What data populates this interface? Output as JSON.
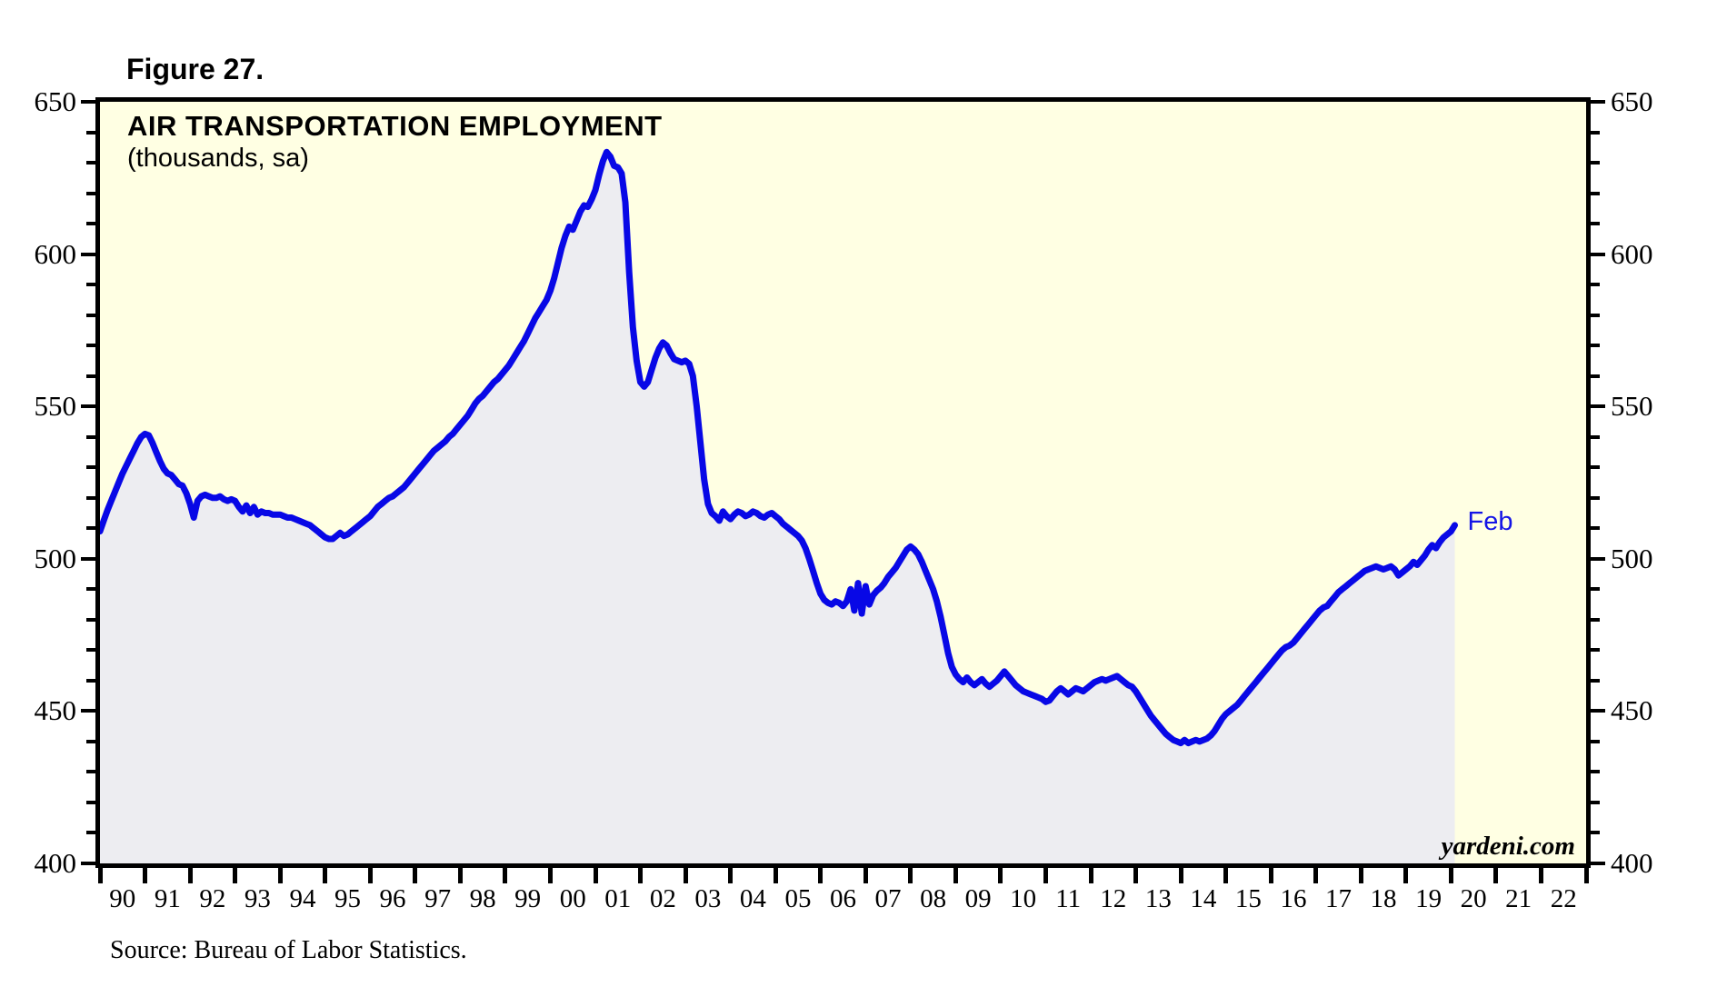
{
  "figure": {
    "label": "Figure 27."
  },
  "chart": {
    "title": "AIR TRANSPORTATION EMPLOYMENT",
    "subtitle": "(thousands, sa)",
    "annotation": "Feb",
    "watermark": "yardeni.com",
    "source": "Source: Bureau of Labor Statistics.",
    "colors": {
      "plot_background": "#FFFFE3",
      "area_fill": "#EDEDF1",
      "line": "#0808E6",
      "annotation_text": "#1414E6",
      "axis": "#000000"
    }
  },
  "chart_data": {
    "type": "area",
    "title": "AIR TRANSPORTATION EMPLOYMENT",
    "units": "thousands, seasonally adjusted",
    "frequency": "monthly",
    "start": "1990-01",
    "end": "2020-02",
    "last_point_label": "Feb",
    "last_value": 511,
    "x_axis": {
      "start_year": 1990,
      "end_year": 2023,
      "tick_labels": [
        "90",
        "91",
        "92",
        "93",
        "94",
        "95",
        "96",
        "97",
        "98",
        "99",
        "00",
        "01",
        "02",
        "03",
        "04",
        "05",
        "06",
        "07",
        "08",
        "09",
        "10",
        "11",
        "12",
        "13",
        "14",
        "15",
        "16",
        "17",
        "18",
        "19",
        "20",
        "21",
        "22"
      ]
    },
    "y_axis": {
      "min": 400,
      "max": 650,
      "major_step": 50,
      "minor_step": 10,
      "tick_labels": [
        "650",
        "600",
        "550",
        "500",
        "450",
        "400"
      ],
      "grid": false
    },
    "values": [
      509,
      512.5,
      516,
      519,
      522,
      525,
      528,
      530.5,
      533,
      535.5,
      538,
      540,
      541,
      540.5,
      538,
      535,
      532,
      529.5,
      528,
      527.5,
      526,
      524.5,
      524,
      521.5,
      518,
      513.5,
      519,
      520.5,
      521,
      520.5,
      520,
      520,
      520.5,
      519.5,
      519,
      519.5,
      519,
      517,
      515.5,
      517.5,
      515,
      517,
      514.5,
      515.5,
      515,
      515,
      514.5,
      514.5,
      514.5,
      514,
      513.5,
      513.5,
      513,
      512.5,
      512,
      511.5,
      511,
      510,
      509,
      508,
      507,
      506.5,
      506.5,
      507.5,
      508.5,
      507.5,
      508,
      509,
      510,
      511,
      512,
      513,
      514,
      515.5,
      517,
      518,
      519,
      520,
      520.5,
      521.5,
      522.5,
      523.5,
      525,
      526.5,
      528,
      529.5,
      531,
      532.5,
      534,
      535.5,
      536.5,
      537.5,
      538.5,
      540,
      541,
      542.5,
      544,
      545.5,
      547,
      549,
      551,
      552.5,
      553.5,
      555,
      556.5,
      558,
      559,
      560.5,
      562,
      563.5,
      565.5,
      567.5,
      569.5,
      571.5,
      574,
      576.5,
      579,
      581,
      583,
      585,
      588,
      592,
      597,
      602,
      606,
      609,
      608,
      611,
      614,
      616,
      615.5,
      618,
      621,
      626,
      630.5,
      633.5,
      632,
      629,
      628.5,
      626.5,
      617,
      594,
      576,
      565,
      558,
      556.5,
      558,
      562,
      566,
      569,
      571,
      570,
      567.5,
      565.5,
      565,
      564.5,
      565,
      564,
      560,
      550,
      538,
      526,
      518,
      515,
      514,
      512.5,
      515.5,
      514,
      513,
      514.5,
      515.5,
      515,
      514,
      514.5,
      515.5,
      515,
      514,
      513.5,
      514.5,
      515,
      514,
      513,
      511.5,
      510.5,
      509.5,
      508.5,
      507.5,
      506,
      503.5,
      500,
      496,
      492,
      488.5,
      486.5,
      485.5,
      485,
      486,
      485.5,
      484.5,
      486,
      490,
      483,
      492,
      482,
      491,
      485,
      488,
      489.5,
      490.5,
      492,
      494,
      495.5,
      497,
      499,
      501,
      503,
      504,
      503,
      501.5,
      499,
      496,
      493,
      490,
      486,
      481,
      475,
      469,
      464.5,
      462,
      460.5,
      459.5,
      461,
      459.5,
      458.5,
      459.5,
      460.5,
      459,
      458,
      459,
      460,
      461.5,
      463,
      461.5,
      460,
      458.5,
      457.5,
      456.5,
      456,
      455.5,
      455,
      454.5,
      454,
      453,
      453.5,
      455,
      456.5,
      457.5,
      456.5,
      455.5,
      456.5,
      457.5,
      457,
      456.5,
      457.5,
      458.5,
      459.5,
      460,
      460.5,
      460,
      460.5,
      461,
      461.5,
      460.5,
      459.5,
      458.5,
      458,
      456.5,
      454.5,
      452.5,
      450.5,
      448.5,
      447,
      445.5,
      444,
      442.5,
      441.5,
      440.5,
      440,
      439.5,
      440.5,
      439.5,
      440,
      440.5,
      440,
      440.5,
      441,
      442,
      443.5,
      445.5,
      447.5,
      449,
      450,
      451,
      452,
      453.5,
      455,
      456.5,
      458,
      459.5,
      461,
      462.5,
      464,
      465.5,
      467,
      468.5,
      470,
      471,
      471.5,
      472.5,
      474,
      475.5,
      477,
      478.5,
      480,
      481.5,
      483,
      484,
      484.5,
      486,
      487.5,
      489,
      490,
      491,
      492,
      493,
      494,
      495,
      496,
      496.5,
      497,
      497.5,
      497,
      496.5,
      497,
      497.5,
      496.5,
      494.5,
      495.5,
      496.5,
      497.5,
      499,
      498,
      499.5,
      501,
      503,
      504.5,
      503.5,
      505.5,
      507,
      508,
      509,
      511
    ]
  }
}
